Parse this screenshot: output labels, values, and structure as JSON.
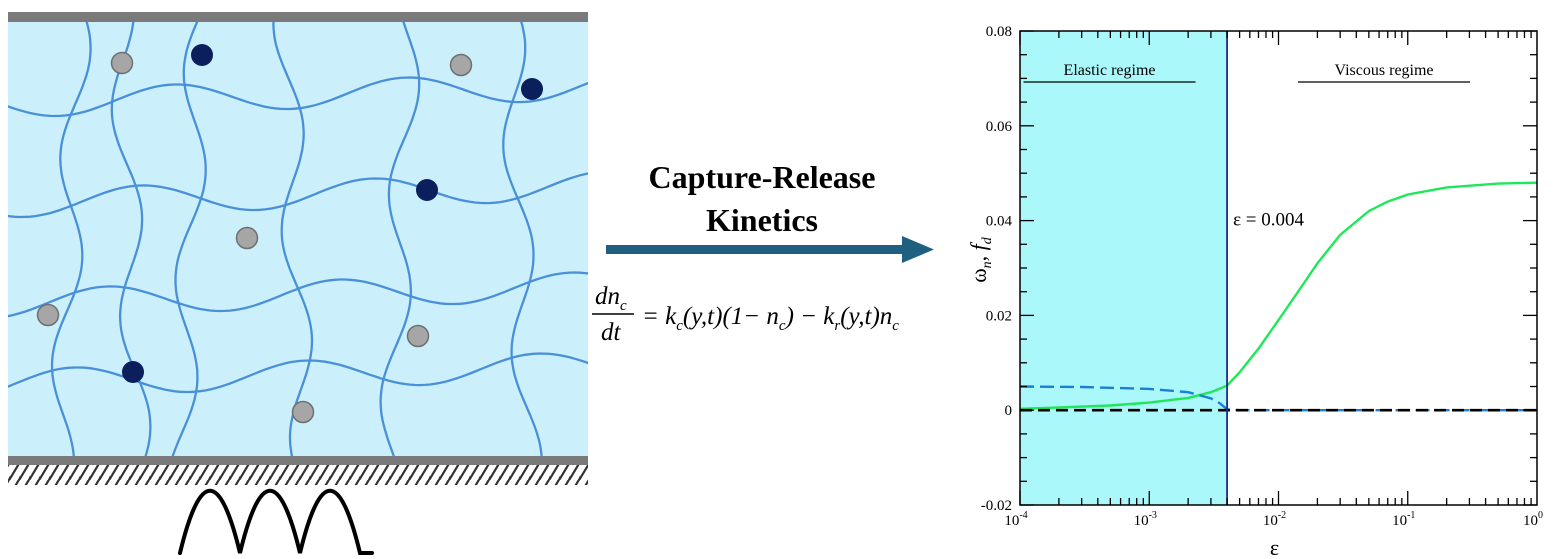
{
  "arrow": {
    "label_line1": "Capture-Release",
    "label_line2": "Kinetics",
    "color": "#1f6080"
  },
  "equation": {
    "numerator": "dn",
    "numerator_sub": "c",
    "denominator": "dt",
    "rhs_parts": [
      "= k",
      "c",
      "(y,t)(1− n",
      "c",
      ") − k",
      "r",
      "(y,t)n",
      "c"
    ]
  },
  "network": {
    "background": "#cbf0fb",
    "strand_color": "#4a90d9",
    "captured_particle_color": "#0b1f5c",
    "free_particle_color": "#a6a6a6"
  },
  "chart_data": {
    "type": "line",
    "x_scale": "log",
    "xlim": [
      0.0001,
      1
    ],
    "ylim": [
      -0.02,
      0.08
    ],
    "xlabel": "ε",
    "ylabel": "ωn, fd",
    "ylabel_parts": [
      "ω",
      "n",
      ", ",
      "f",
      "d"
    ],
    "x_tick_labels": [
      {
        "base": "10",
        "exp": "-4"
      },
      {
        "base": "10",
        "exp": "-3"
      },
      {
        "base": "10",
        "exp": "-2"
      },
      {
        "base": "10",
        "exp": "-1"
      },
      {
        "base": "10",
        "exp": "0"
      }
    ],
    "y_ticks": [
      "-0.02",
      "0",
      "0.02",
      "0.04",
      "0.06",
      "0.08"
    ],
    "y_tick_values": [
      -0.02,
      0,
      0.02,
      0.04,
      0.06,
      0.08
    ],
    "regions": [
      {
        "label": "Elastic regime",
        "x_from": 0.0001,
        "x_to": 0.004,
        "fill": "#aaf8fa"
      },
      {
        "label": "Viscous regime",
        "x_from": 0.004,
        "x_to": 1,
        "fill": "#ffffff"
      }
    ],
    "threshold": {
      "x": 0.004,
      "label": "ε = 0.004"
    },
    "series": [
      {
        "style": "solid",
        "color": "#1ee85a",
        "x": [
          0.0001,
          0.0002,
          0.0005,
          0.001,
          0.002,
          0.003,
          0.004,
          0.005,
          0.007,
          0.01,
          0.015,
          0.02,
          0.03,
          0.05,
          0.07,
          0.1,
          0.2,
          0.5,
          1
        ],
        "y": [
          0.0003,
          0.0006,
          0.001,
          0.0016,
          0.0026,
          0.0038,
          0.0052,
          0.008,
          0.013,
          0.019,
          0.026,
          0.031,
          0.037,
          0.042,
          0.044,
          0.0455,
          0.047,
          0.0478,
          0.048
        ]
      },
      {
        "style": "dashed",
        "color": "#1a7fd9",
        "x": [
          0.0001,
          0.0003,
          0.001,
          0.002,
          0.003,
          0.0035,
          0.004,
          0.005,
          0.01,
          0.1,
          1
        ],
        "y": [
          0.005,
          0.0049,
          0.0045,
          0.0038,
          0.0025,
          0.0015,
          0.0002,
          0,
          0,
          0,
          0
        ]
      },
      {
        "style": "dashed",
        "color": "#000000",
        "x": [
          0.0001,
          1
        ],
        "y": [
          0,
          0
        ]
      }
    ]
  }
}
